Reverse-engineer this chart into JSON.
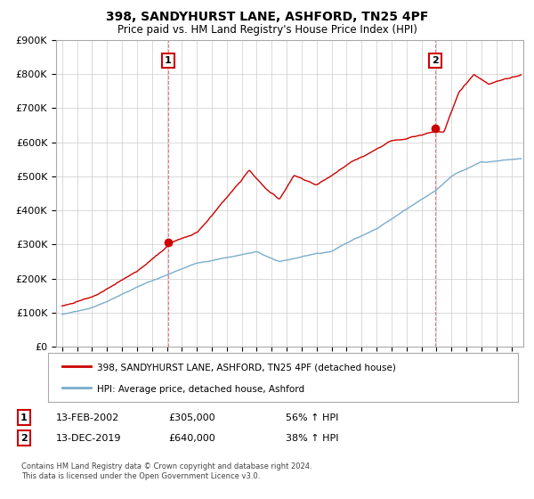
{
  "title": "398, SANDYHURST LANE, ASHFORD, TN25 4PF",
  "subtitle": "Price paid vs. HM Land Registry's House Price Index (HPI)",
  "legend_line1": "398, SANDYHURST LANE, ASHFORD, TN25 4PF (detached house)",
  "legend_line2": "HPI: Average price, detached house, Ashford",
  "annotation1_date": "13-FEB-2002",
  "annotation1_price": "£305,000",
  "annotation1_hpi": "56% ↑ HPI",
  "annotation2_date": "13-DEC-2019",
  "annotation2_price": "£640,000",
  "annotation2_hpi": "38% ↑ HPI",
  "footnote": "Contains HM Land Registry data © Crown copyright and database right 2024.\nThis data is licensed under the Open Government Licence v3.0.",
  "red_color": "#cc0000",
  "blue_color": "#7aadcc",
  "annotation_box_color": "#cc0000",
  "ylim": [
    0,
    900000
  ],
  "yticks": [
    0,
    100000,
    200000,
    300000,
    400000,
    500000,
    600000,
    700000,
    800000,
    900000
  ],
  "xlim_start": 1994.6,
  "xlim_end": 2025.8,
  "marker1_x": 2002.08,
  "marker1_y": 305000,
  "marker2_x": 2019.92,
  "marker2_y": 640000
}
